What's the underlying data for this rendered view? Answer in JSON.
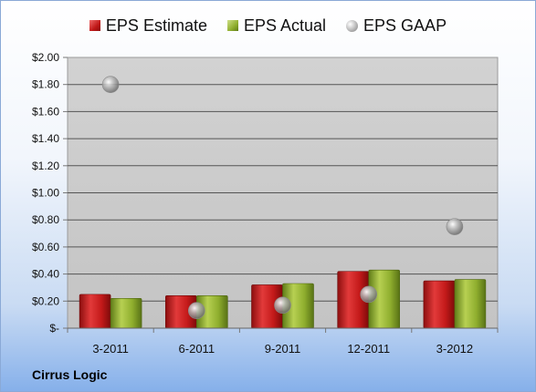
{
  "chart_data": {
    "type": "bar",
    "categories": [
      "3-2011",
      "6-2011",
      "9-2011",
      "12-2011",
      "3-2012"
    ],
    "series": [
      {
        "name": "EPS Estimate",
        "kind": "bar",
        "color": "#c0181a",
        "values": [
          0.25,
          0.24,
          0.32,
          0.42,
          0.35
        ]
      },
      {
        "name": "EPS Actual",
        "kind": "bar",
        "color": "#8fae2e",
        "values": [
          0.22,
          0.24,
          0.33,
          0.43,
          0.36
        ]
      },
      {
        "name": "EPS GAAP",
        "kind": "scatter",
        "color": "#a9a9a9",
        "values": [
          1.8,
          0.13,
          0.17,
          0.25,
          0.75
        ]
      }
    ],
    "y_ticks": [
      "$-",
      "$0.20",
      "$0.40",
      "$0.60",
      "$0.80",
      "$1.00",
      "$1.20",
      "$1.40",
      "$1.60",
      "$1.80",
      "$2.00"
    ],
    "ylim": [
      0,
      2.0
    ],
    "grid": true,
    "legend": "top"
  },
  "legend": {
    "estimate": "EPS Estimate",
    "actual": "EPS Actual",
    "gaap": "EPS GAAP"
  },
  "company": "Cirrus Logic"
}
